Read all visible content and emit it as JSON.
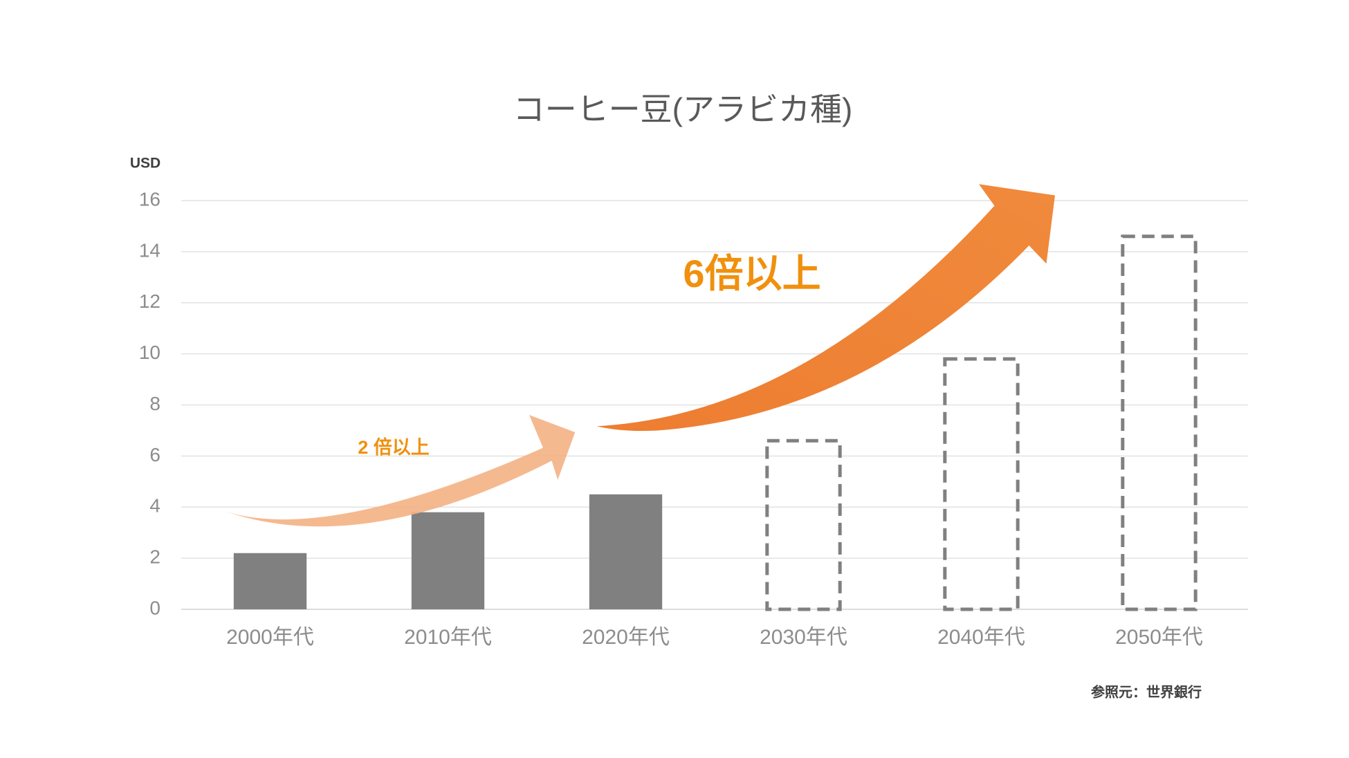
{
  "chart_data": {
    "type": "bar",
    "title": "コーヒー豆(アラビカ種)",
    "y_label": "USD",
    "categories": [
      "2000年代",
      "2010年代",
      "2020年代",
      "2030年代",
      "2040年代",
      "2050年代"
    ],
    "values": [
      2.2,
      3.8,
      4.5,
      6.6,
      9.8,
      14.6
    ],
    "bar_styles": [
      "solid",
      "solid",
      "solid",
      "dashed",
      "dashed",
      "dashed"
    ],
    "color": "#808080",
    "ylim": [
      0,
      16
    ],
    "yticks": [
      0,
      2,
      4,
      6,
      8,
      10,
      12,
      14,
      16
    ],
    "grid": true,
    "annotations": [
      "2 倍以上",
      "6倍以上"
    ],
    "source": "参照元：世界銀行"
  }
}
